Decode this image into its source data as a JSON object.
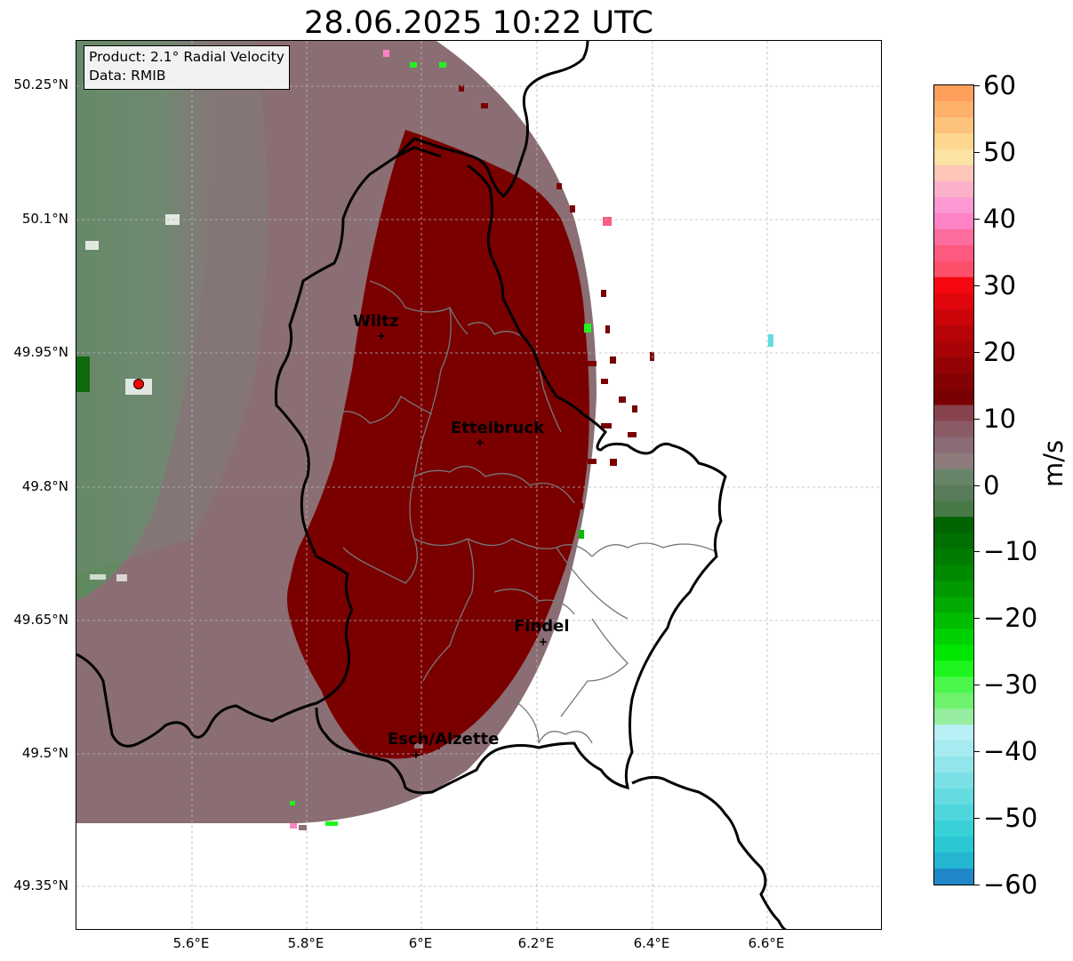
{
  "title": "28.06.2025 10:22 UTC",
  "info_box": {
    "product": "Product: 2.1° Radial Velocity",
    "data": "Data: RMIB"
  },
  "lat_ticks": [
    "50.25°N",
    "50.1°N",
    "49.95°N",
    "49.8°N",
    "49.65°N",
    "49.5°N",
    "49.35°N"
  ],
  "lon_ticks": [
    "5.6°E",
    "5.8°E",
    "6°E",
    "6.2°E",
    "6.4°E",
    "6.6°E"
  ],
  "cities": [
    {
      "name": "Wiltz",
      "lon": 5.93,
      "lat": 49.97
    },
    {
      "name": "Ettelbruck",
      "lon": 6.1,
      "lat": 49.85
    },
    {
      "name": "Findel",
      "lon": 6.21,
      "lat": 49.63
    },
    {
      "name": "Esch/Alzette",
      "lon": 5.99,
      "lat": 49.5
    }
  ],
  "radar_site": {
    "lon": 5.51,
    "lat": 49.92,
    "color": "#ff0000"
  },
  "map_extent": {
    "lon": [
      5.4,
      6.8
    ],
    "lat": [
      49.3,
      50.3
    ]
  },
  "colorbar": {
    "label": "m/s",
    "min": -60,
    "max": 60,
    "ticks": [
      "60",
      "50",
      "40",
      "30",
      "20",
      "10",
      "0",
      "−10",
      "−20",
      "−30",
      "−40",
      "−50",
      "−60"
    ],
    "colors_top_to_bottom": [
      "#fd9f5a",
      "#fdb06a",
      "#fdc27c",
      "#fdd68f",
      "#fde3a3",
      "#fec6b8",
      "#fdb1c8",
      "#fd99d2",
      "#fd83c6",
      "#fd6d9e",
      "#fd5a7f",
      "#fd4f6a",
      "#f50810",
      "#e0060c",
      "#cc050a",
      "#b80408",
      "#a80306",
      "#950205",
      "#850204",
      "#7a0103",
      "#87444f",
      "#8a5a65",
      "#8a6b76",
      "#8d7a7a",
      "#68856a",
      "#5a7c5a",
      "#487a48",
      "#006400",
      "#007000",
      "#007d00",
      "#008a00",
      "#009900",
      "#00aa00",
      "#00bd00",
      "#00d100",
      "#00e600",
      "#1ef51e",
      "#4cf74c",
      "#6ef26e",
      "#96eda0",
      "#b8f0f5",
      "#a6ebf0",
      "#90e6eb",
      "#7ae0e6",
      "#64dbe1",
      "#4ed6dc",
      "#38d1d8",
      "#2bc7d3",
      "#24b5d2",
      "#2087c8"
    ],
    "colors_top_to_bottom_note": ""
  },
  "colors": {
    "far_field_gray": "#8a7074",
    "green_field": "#5d8a5d",
    "storm_red": "#7a0000",
    "border_black": "#000000",
    "canton_gray": "#777777"
  }
}
